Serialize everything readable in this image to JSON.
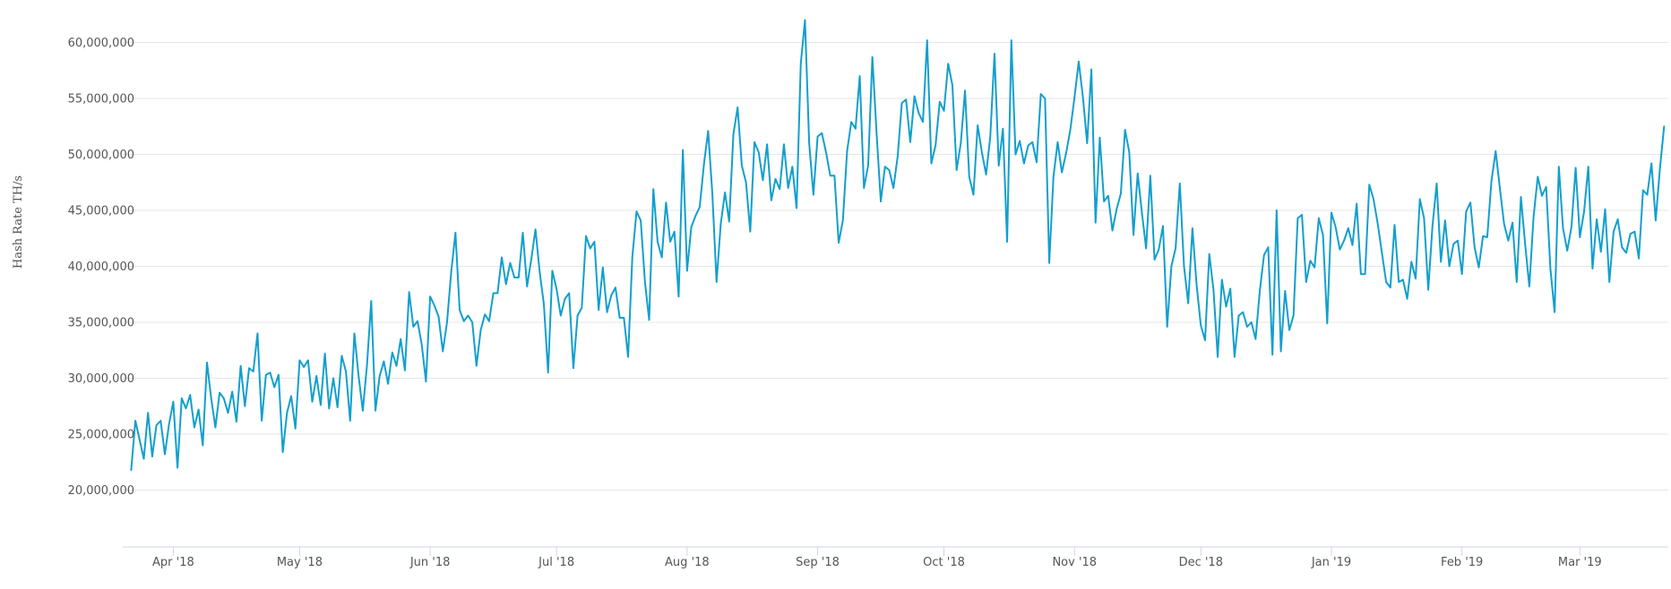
{
  "chart_data": {
    "type": "line",
    "title": "",
    "xlabel": "",
    "ylabel": "Hash Rate TH/s",
    "grid": true,
    "legend": "none",
    "line_color": "#129fce",
    "ylim": [
      15000000,
      63000000
    ],
    "xlim": [
      "2018-03-20",
      "2019-03-22"
    ],
    "y_ticks": [
      20000000,
      25000000,
      30000000,
      35000000,
      40000000,
      45000000,
      50000000,
      55000000,
      60000000
    ],
    "y_tick_labels": [
      "20,000,000",
      "25,000,000",
      "30,000,000",
      "35,000,000",
      "40,000,000",
      "45,000,000",
      "50,000,000",
      "55,000,000",
      "60,000,000"
    ],
    "x_ticks": [
      {
        "date": "2018-04-01",
        "label": "Apr '18"
      },
      {
        "date": "2018-05-01",
        "label": "May '18"
      },
      {
        "date": "2018-06-01",
        "label": "Jun '18"
      },
      {
        "date": "2018-07-01",
        "label": "Jul '18"
      },
      {
        "date": "2018-08-01",
        "label": "Aug '18"
      },
      {
        "date": "2018-09-01",
        "label": "Sep '18"
      },
      {
        "date": "2018-10-01",
        "label": "Oct '18"
      },
      {
        "date": "2018-11-01",
        "label": "Nov '18"
      },
      {
        "date": "2018-12-01",
        "label": "Dec '18"
      },
      {
        "date": "2019-01-01",
        "label": "Jan '19"
      },
      {
        "date": "2019-02-01",
        "label": "Feb '19"
      },
      {
        "date": "2019-03-01",
        "label": "Mar '19"
      }
    ],
    "series": [
      {
        "start_date": "2018-03-22",
        "interval_days": 1,
        "values": [
          21.8,
          26.2,
          24.5,
          22.8,
          26.9,
          23.0,
          25.8,
          26.2,
          23.2,
          25.9,
          27.9,
          22.0,
          28.2,
          27.3,
          28.5,
          25.6,
          27.2,
          24.0,
          31.4,
          28.2,
          25.6,
          28.7,
          28.2,
          26.9,
          28.8,
          26.1,
          31.1,
          27.5,
          30.9,
          30.6,
          34.0,
          26.2,
          30.3,
          30.5,
          29.2,
          30.3,
          23.4,
          26.9,
          28.4,
          25.5,
          31.6,
          31.0,
          31.6,
          27.9,
          30.2,
          27.6,
          32.2,
          27.3,
          30.0,
          27.4,
          32.0,
          30.6,
          26.2,
          34.0,
          30.2,
          27.1,
          31.2,
          36.9,
          27.1,
          30.2,
          31.5,
          29.5,
          32.3,
          31.1,
          33.5,
          30.7,
          37.7,
          34.6,
          35.1,
          33.0,
          29.7,
          37.3,
          36.5,
          35.5,
          32.4,
          35.0,
          39.5,
          43.0,
          36.1,
          35.1,
          35.6,
          35.0,
          31.1,
          34.3,
          35.7,
          35.1,
          37.6,
          37.6,
          40.8,
          38.4,
          40.3,
          39.0,
          39.0,
          43.0,
          38.2,
          40.6,
          43.3,
          39.5,
          36.6,
          30.5,
          39.6,
          38.0,
          35.6,
          37.1,
          37.6,
          30.9,
          35.6,
          36.3,
          42.7,
          41.6,
          42.2,
          36.1,
          39.9,
          35.9,
          37.4,
          38.1,
          35.4,
          35.4,
          31.9,
          40.8,
          44.9,
          44.1,
          38.6,
          35.2,
          46.9,
          42.2,
          40.8,
          45.7,
          42.2,
          43.1,
          37.3,
          50.4,
          39.6,
          43.5,
          44.5,
          45.3,
          49.1,
          52.1,
          46.5,
          38.6,
          43.8,
          46.6,
          44.0,
          51.8,
          54.2,
          49.0,
          47.5,
          43.1,
          51.1,
          50.2,
          47.7,
          50.9,
          45.9,
          47.8,
          46.9,
          50.9,
          47.0,
          48.9,
          45.2,
          58.1,
          62.0,
          51.0,
          46.4,
          51.6,
          51.9,
          50.2,
          48.1,
          48.1,
          42.1,
          44.1,
          50.3,
          52.9,
          52.3,
          57.0,
          47.0,
          49.0,
          58.7,
          51.9,
          45.8,
          48.9,
          48.6,
          47.0,
          49.8,
          54.6,
          54.9,
          51.1,
          55.2,
          53.7,
          52.9,
          60.2,
          49.2,
          50.8,
          54.7,
          53.9,
          58.1,
          56.2,
          48.6,
          51.0,
          55.7,
          48.0,
          46.4,
          52.6,
          50.2,
          48.2,
          51.6,
          59.0,
          49.0,
          52.3,
          42.2,
          60.2,
          50.0,
          51.2,
          49.2,
          50.8,
          51.1,
          49.3,
          55.4,
          55.0,
          40.3,
          48.0,
          51.1,
          48.4,
          50.1,
          52.2,
          55.1,
          58.3,
          55.1,
          51.0,
          57.6,
          43.9,
          51.5,
          45.8,
          46.3,
          43.2,
          45.1,
          46.5,
          52.2,
          50.2,
          42.8,
          48.3,
          44.8,
          41.6,
          48.1,
          40.6,
          41.5,
          43.6,
          34.6,
          40.0,
          41.6,
          47.4,
          40.0,
          36.7,
          43.4,
          38.3,
          34.7,
          33.4,
          41.1,
          37.9,
          31.9,
          38.8,
          36.4,
          38.0,
          31.9,
          35.6,
          35.9,
          34.6,
          35.0,
          33.5,
          37.8,
          41.0,
          41.7,
          32.1,
          45.0,
          32.4,
          37.8,
          34.3,
          35.6,
          44.3,
          44.6,
          38.6,
          40.5,
          39.9,
          44.3,
          42.8,
          34.9,
          44.8,
          43.5,
          41.5,
          42.3,
          43.4,
          41.9,
          45.6,
          39.3,
          39.3,
          47.3,
          46.0,
          43.8,
          41.2,
          38.6,
          38.1,
          43.7,
          38.6,
          38.8,
          37.1,
          40.4,
          38.9,
          46.0,
          44.3,
          37.9,
          43.6,
          47.4,
          40.4,
          44.1,
          40.0,
          42.0,
          42.3,
          39.3,
          44.9,
          45.7,
          41.7,
          39.9,
          42.7,
          42.6,
          47.6,
          50.3,
          47.0,
          43.8,
          42.3,
          43.9,
          38.6,
          46.2,
          42.0,
          38.2,
          44.4,
          48.0,
          46.3,
          47.1,
          39.8,
          35.9,
          48.9,
          43.4,
          41.4,
          43.5,
          48.8,
          42.6,
          44.9,
          48.9,
          39.8,
          44.2,
          41.3,
          45.1,
          38.6,
          43.1,
          44.2,
          41.7,
          41.2,
          42.9,
          43.1,
          40.7,
          46.8,
          46.4,
          49.2,
          44.1,
          48.7,
          52.5
        ]
      }
    ]
  }
}
